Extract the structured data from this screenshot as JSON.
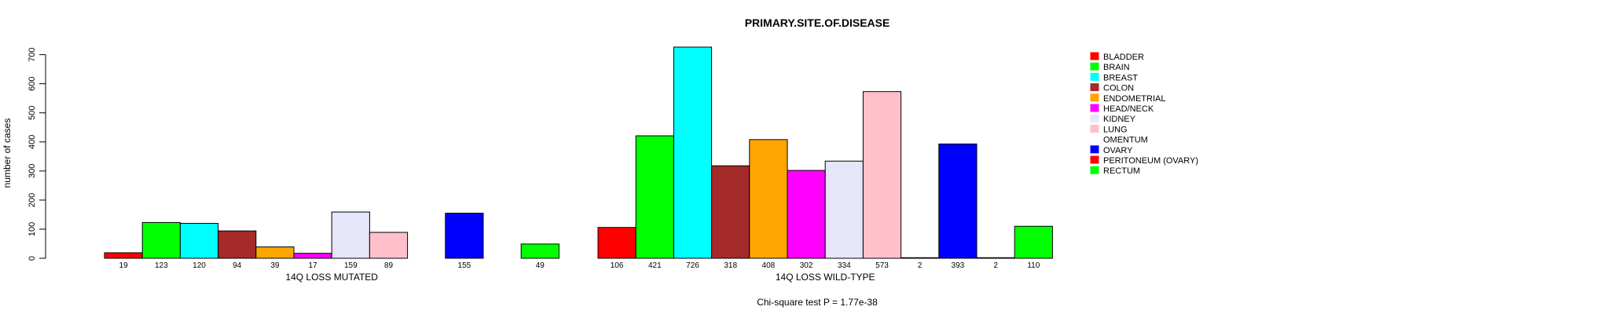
{
  "chart_data": {
    "type": "bar",
    "title": "PRIMARY.SITE.OF.DISEASE",
    "ylabel": "number of cases",
    "ylim": [
      0,
      700
    ],
    "yticks": [
      0,
      100,
      200,
      300,
      400,
      500,
      600,
      700
    ],
    "categories": [
      "BLADDER",
      "BRAIN",
      "BREAST",
      "COLON",
      "ENDOMETRIAL",
      "HEAD/NECK",
      "KIDNEY",
      "LUNG",
      "OMENTUM",
      "OVARY",
      "PERITONEUM (OVARY)",
      "RECTUM"
    ],
    "colors": [
      "#ff0000",
      "#00ff00",
      "#00ffff",
      "#a52a2a",
      "#ffa500",
      "#ff00ff",
      "#e6e6fa",
      "#ffc0cb",
      "#ffffff",
      "#0000ff",
      "#ff0000",
      "#00ff00"
    ],
    "groups": [
      {
        "name": "14Q LOSS MUTATED",
        "values": [
          19,
          123,
          120,
          94,
          39,
          17,
          159,
          89,
          0,
          155,
          0,
          49
        ],
        "labels": [
          "19",
          "123",
          "120",
          "94",
          "39",
          "17",
          "159",
          "89",
          "",
          "155",
          "",
          "49"
        ]
      },
      {
        "name": "14Q LOSS WILD-TYPE",
        "values": [
          106,
          421,
          726,
          318,
          408,
          302,
          334,
          573,
          2,
          393,
          2,
          110
        ],
        "labels": [
          "106",
          "421",
          "726",
          "318",
          "408",
          "302",
          "334",
          "573",
          "2",
          "393",
          "2",
          "110"
        ]
      }
    ],
    "legend_position": "right",
    "annotation": "Chi-square test P = 1.77e-38"
  }
}
